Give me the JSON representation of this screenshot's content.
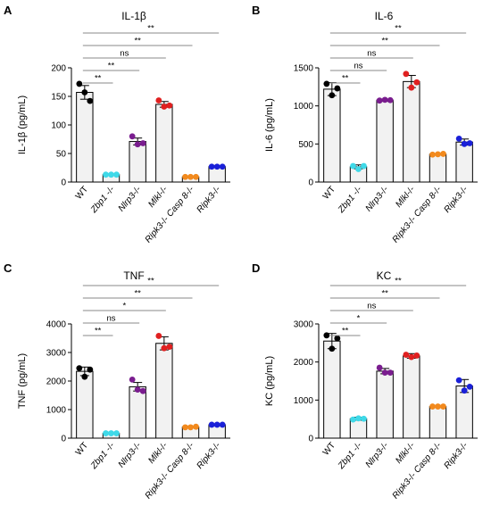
{
  "figure": {
    "panels": [
      "A",
      "B",
      "C",
      "D"
    ]
  },
  "chart_data": [
    {
      "panel": "A",
      "type": "bar",
      "title": "IL-1β",
      "ylabel": "IL-1β (pg/mL)",
      "ylim": [
        0,
        200
      ],
      "yticks": [
        "0",
        "50",
        "100",
        "150",
        "200"
      ],
      "categories": [
        "WT",
        "Zbp1 -/-",
        "Nlrp3-/-",
        "Mlkl-/-",
        "Ripk3-/- Casp 8-/-",
        "Ripk3-/-"
      ],
      "values": [
        157,
        13,
        71,
        136,
        9,
        27
      ],
      "errors": [
        12,
        1.5,
        6,
        5,
        1.5,
        1.5
      ],
      "points": [
        [
          172,
          157,
          142
        ],
        [
          13,
          13,
          13
        ],
        [
          80,
          66,
          68
        ],
        [
          143,
          132,
          134
        ],
        [
          9,
          9,
          9
        ],
        [
          27,
          27,
          27
        ]
      ],
      "point_colors": [
        "#000000",
        "#3fd9e8",
        "#7a1d8f",
        "#e02020",
        "#f28a1e",
        "#1a20d8"
      ],
      "comparisons": [
        {
          "label": "**",
          "to": "Zbp1 -/-"
        },
        {
          "label": "**",
          "to": "Nlrp3-/-"
        },
        {
          "label": "ns",
          "to": "Mlkl-/-"
        },
        {
          "label": "**",
          "to": "Ripk3-/- Casp 8-/-"
        },
        {
          "label": "**",
          "to": "Ripk3-/-"
        }
      ]
    },
    {
      "panel": "B",
      "type": "bar",
      "title": "IL-6",
      "ylabel": "IL-6 (pg/mL)",
      "ylim": [
        0,
        1500
      ],
      "yticks": [
        "0",
        "500",
        "1000",
        "1500"
      ],
      "categories": [
        "WT",
        "Zbp1 -/-",
        "Nlrp3-/-",
        "Mlkl-/-",
        "Ripk3-/- Casp 8-/-",
        "Ripk3-/-"
      ],
      "values": [
        1220,
        200,
        1075,
        1320,
        365,
        525
      ],
      "errors": [
        85,
        25,
        15,
        80,
        10,
        40
      ],
      "points": [
        [
          1290,
          1140,
          1230
        ],
        [
          210,
          170,
          210
        ],
        [
          1070,
          1080,
          1075
        ],
        [
          1420,
          1240,
          1310
        ],
        [
          360,
          365,
          370
        ],
        [
          570,
          500,
          510
        ]
      ],
      "point_colors": [
        "#000000",
        "#3fd9e8",
        "#7a1d8f",
        "#e02020",
        "#f28a1e",
        "#1a20d8"
      ],
      "comparisons": [
        {
          "label": "**",
          "to": "Zbp1 -/-"
        },
        {
          "label": "ns",
          "to": "Nlrp3-/-"
        },
        {
          "label": "ns",
          "to": "Mlkl-/-"
        },
        {
          "label": "**",
          "to": "Ripk3-/- Casp 8-/-"
        },
        {
          "label": "**",
          "to": "Ripk3-/-"
        }
      ]
    },
    {
      "panel": "C",
      "type": "bar",
      "title": "TNF",
      "ylabel": "TNF (pg/mL)",
      "ylim": [
        0,
        4000
      ],
      "yticks": [
        "0",
        "1000",
        "2000",
        "3000",
        "4000"
      ],
      "categories": [
        "WT",
        "Zbp1 -/-",
        "Nlrp3-/-",
        "Mlkl-/-",
        "Ripk3-/- Casp 8-/-",
        "Ripk3-/-"
      ],
      "values": [
        2340,
        170,
        1800,
        3320,
        390,
        470
      ],
      "errors": [
        150,
        10,
        150,
        230,
        30,
        20
      ],
      "points": [
        [
          2450,
          2150,
          2400
        ],
        [
          170,
          170,
          170
        ],
        [
          2050,
          1700,
          1650
        ],
        [
          3580,
          3150,
          3200
        ],
        [
          380,
          380,
          400
        ],
        [
          470,
          470,
          470
        ]
      ],
      "point_colors": [
        "#000000",
        "#3fd9e8",
        "#7a1d8f",
        "#e02020",
        "#f28a1e",
        "#1a20d8"
      ],
      "comparisons": [
        {
          "label": "**",
          "to": "Zbp1 -/-"
        },
        {
          "label": "ns",
          "to": "Nlrp3-/-"
        },
        {
          "label": "*",
          "to": "Mlkl-/-"
        },
        {
          "label": "**",
          "to": "Ripk3-/- Casp 8-/-"
        },
        {
          "label": "**",
          "to": "Ripk3-/-"
        }
      ]
    },
    {
      "panel": "D",
      "type": "bar",
      "title": "KC",
      "ylabel": "KC (pg/mL)",
      "ylim": [
        0,
        3000
      ],
      "yticks": [
        "0",
        "1000",
        "2000",
        "3000"
      ],
      "categories": [
        "WT",
        "Zbp1 -/-",
        "Nlrp3-/-",
        "Mlkl-/-",
        "Ripk3-/- Casp 8-/-",
        "Ripk3-/-"
      ],
      "values": [
        2550,
        510,
        1760,
        2160,
        830,
        1370
      ],
      "errors": [
        200,
        40,
        70,
        60,
        15,
        170
      ],
      "points": [
        [
          2700,
          2350,
          2620
        ],
        [
          490,
          520,
          510
        ],
        [
          1850,
          1720,
          1720
        ],
        [
          2190,
          2130,
          2170
        ],
        [
          830,
          830,
          830
        ],
        [
          1520,
          1250,
          1350
        ]
      ],
      "point_colors": [
        "#000000",
        "#3fd9e8",
        "#7a1d8f",
        "#e02020",
        "#f28a1e",
        "#1a20d8"
      ],
      "comparisons": [
        {
          "label": "**",
          "to": "Zbp1 -/-"
        },
        {
          "label": "*",
          "to": "Nlrp3-/-"
        },
        {
          "label": "ns",
          "to": "Mlkl-/-"
        },
        {
          "label": "**",
          "to": "Ripk3-/- Casp 8-/-"
        },
        {
          "label": "**",
          "to": "Ripk3-/-"
        }
      ]
    }
  ]
}
